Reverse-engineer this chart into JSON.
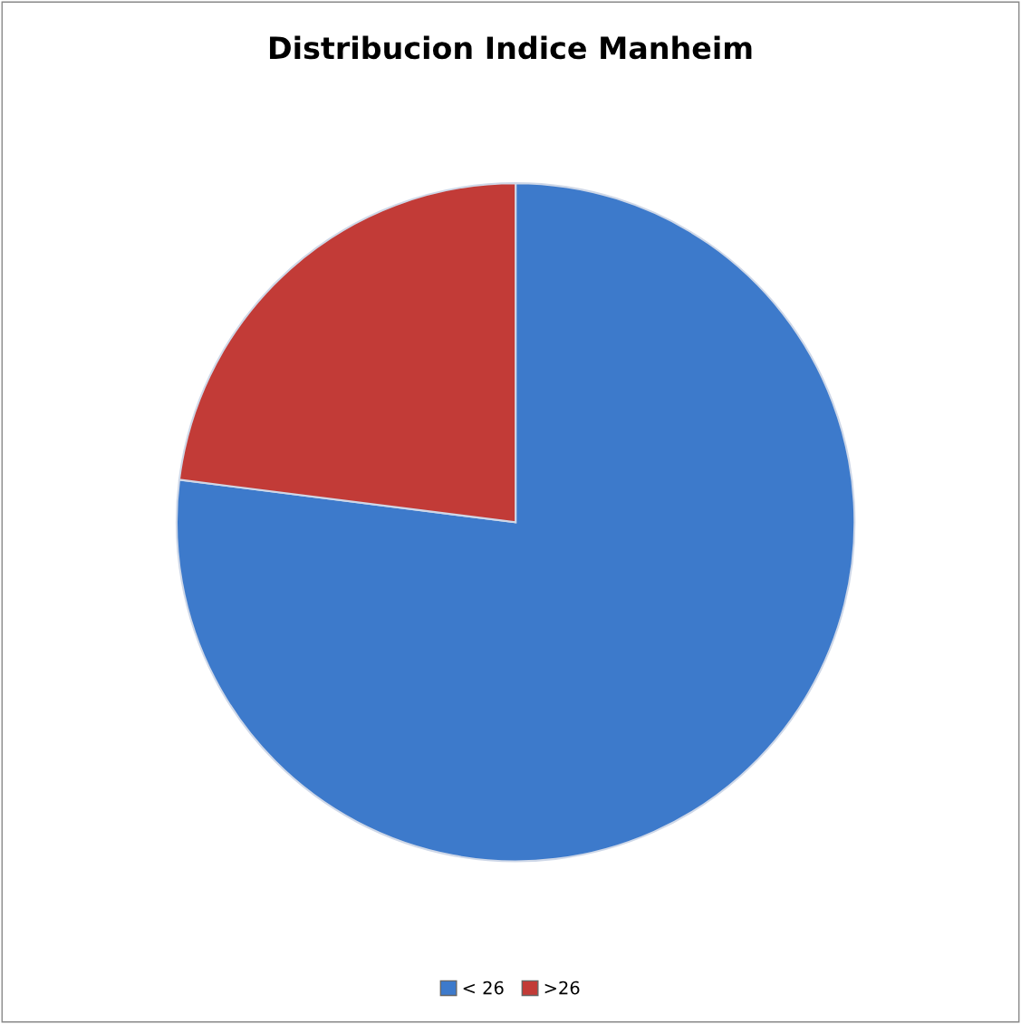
{
  "chart_data": {
    "type": "pie",
    "title": "Distribucion Indice Manheim",
    "categories": [
      "< 26",
      ">26"
    ],
    "values": [
      77,
      23
    ],
    "colors": [
      "#3d7acb",
      "#c23b37"
    ],
    "legend": "bottom"
  }
}
